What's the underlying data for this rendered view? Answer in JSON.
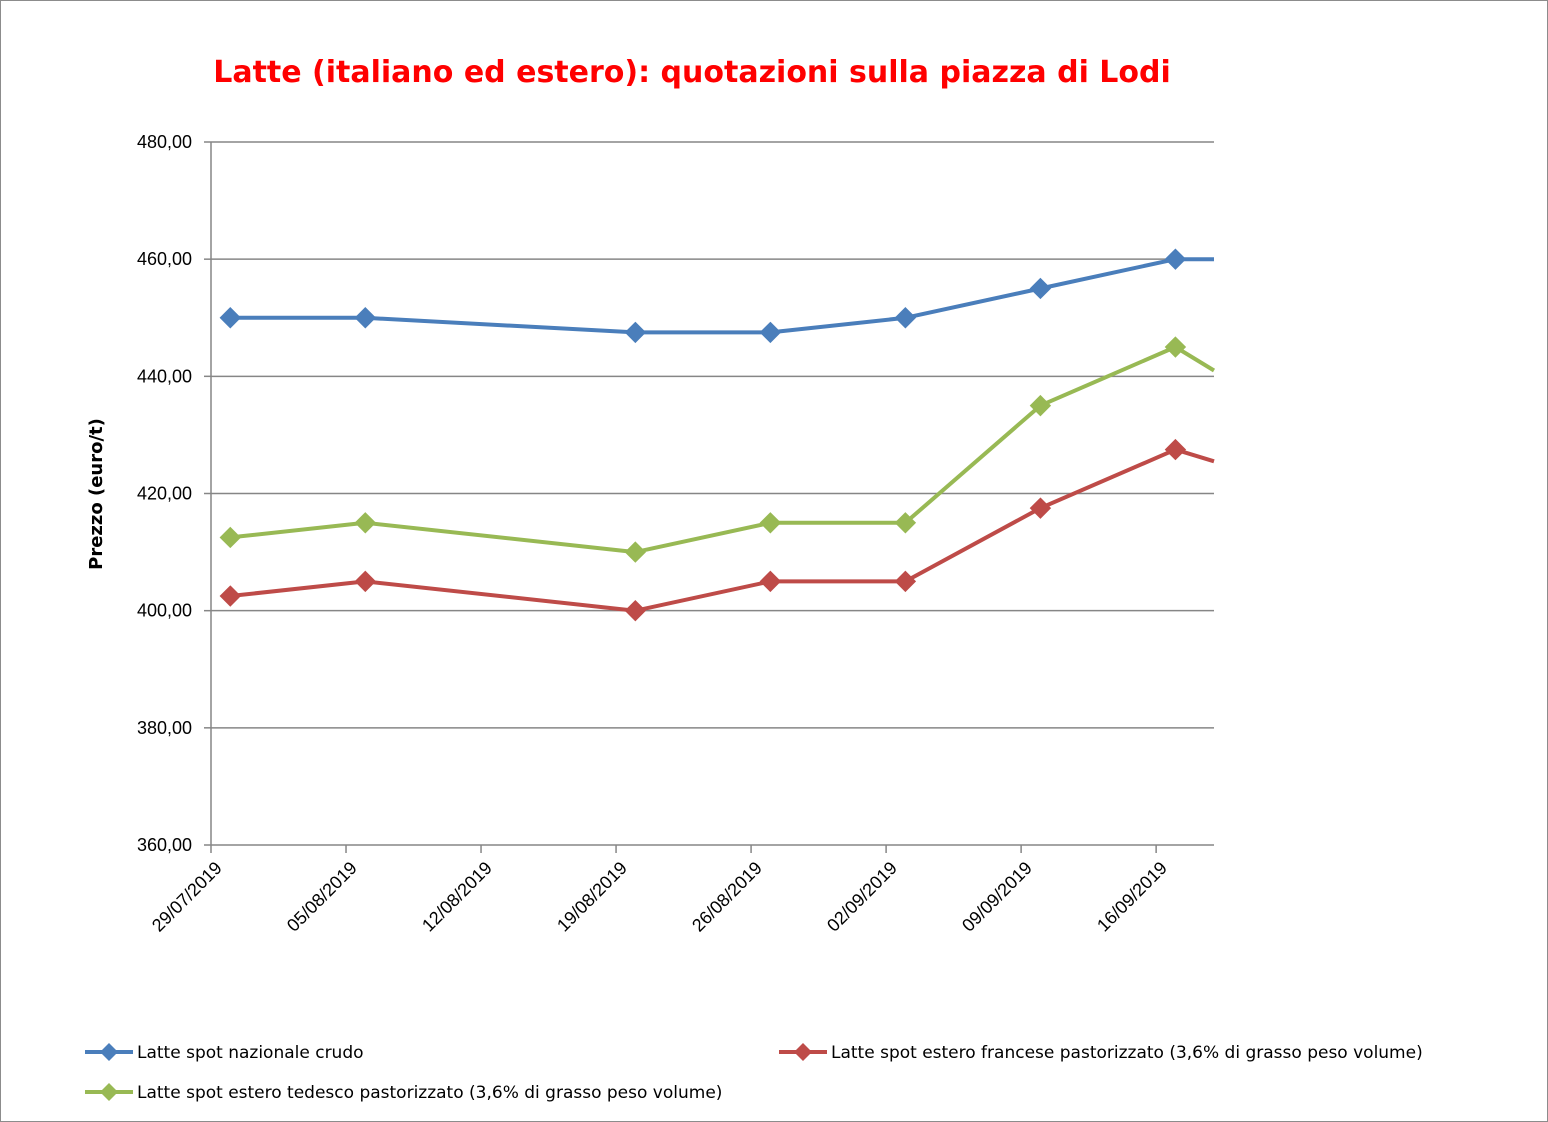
{
  "chart_data": {
    "type": "line",
    "title": "Latte (italiano ed estero): quotazioni sulla piazza di Lodi",
    "title_color": "#ff0000",
    "ylabel": "Prezzo (euro/t)",
    "xlabel": "",
    "ylim": [
      360,
      480
    ],
    "y_ticks": [
      "360,00",
      "380,00",
      "400,00",
      "420,00",
      "440,00",
      "460,00",
      "480,00"
    ],
    "x_tick_labels": [
      "29/07/2019",
      "05/08/2019",
      "12/08/2019",
      "19/08/2019",
      "26/08/2019",
      "02/09/2019",
      "09/09/2019",
      "16/09/2019"
    ],
    "x_range": [
      "2019-07-29",
      "2019-09-19"
    ],
    "grid": "horizontal",
    "legend_position": "bottom",
    "series": [
      {
        "name": "Latte spot nazionale crudo",
        "color": "#4a7ebb",
        "points": [
          {
            "x": "2019-07-30",
            "y": 450
          },
          {
            "x": "2019-08-06",
            "y": 450
          },
          {
            "x": "2019-08-20",
            "y": 447.5
          },
          {
            "x": "2019-08-27",
            "y": 447.5
          },
          {
            "x": "2019-09-03",
            "y": 450
          },
          {
            "x": "2019-09-10",
            "y": 455
          },
          {
            "x": "2019-09-17",
            "y": 460
          }
        ],
        "continues_to": {
          "x": "2019-09-19",
          "y": 460
        }
      },
      {
        "name": "Latte spot estero francese pastorizzato (3,6% di grasso peso volume)",
        "color": "#be4b48",
        "points": [
          {
            "x": "2019-07-30",
            "y": 402.5
          },
          {
            "x": "2019-08-06",
            "y": 405
          },
          {
            "x": "2019-08-20",
            "y": 400
          },
          {
            "x": "2019-08-27",
            "y": 405
          },
          {
            "x": "2019-09-03",
            "y": 405
          },
          {
            "x": "2019-09-10",
            "y": 417.5
          },
          {
            "x": "2019-09-17",
            "y": 427.5
          }
        ],
        "continues_to": {
          "x": "2019-09-19",
          "y": 425.5
        }
      },
      {
        "name": "Latte spot estero tedesco pastorizzato (3,6% di grasso peso volume)",
        "color": "#98b954",
        "points": [
          {
            "x": "2019-07-30",
            "y": 412.5
          },
          {
            "x": "2019-08-06",
            "y": 415
          },
          {
            "x": "2019-08-20",
            "y": 410
          },
          {
            "x": "2019-08-27",
            "y": 415
          },
          {
            "x": "2019-09-03",
            "y": 415
          },
          {
            "x": "2019-09-10",
            "y": 435
          },
          {
            "x": "2019-09-17",
            "y": 445
          }
        ],
        "continues_to": {
          "x": "2019-09-19",
          "y": 441
        }
      }
    ]
  }
}
